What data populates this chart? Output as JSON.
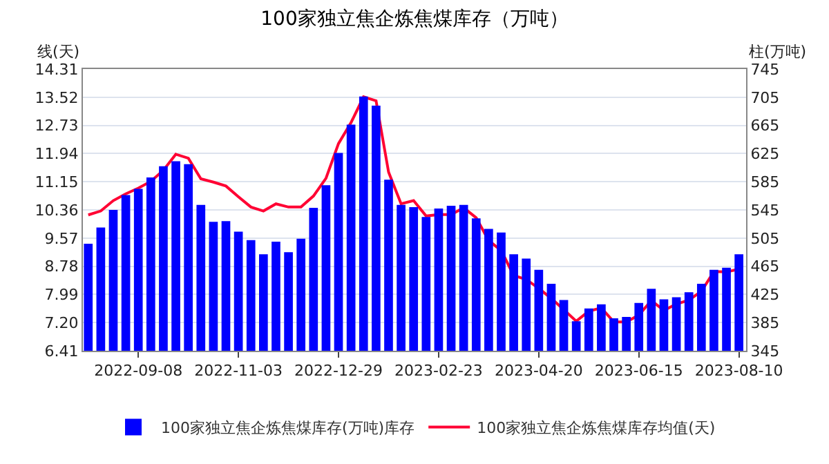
{
  "chart_data": {
    "type": "bar",
    "title": "100家独立焦企炼焦煤库存（万吨）",
    "ylabel": "线(天)",
    "y2label": "柱(万吨)",
    "x": [
      "2022-08-11",
      "2022-08-18",
      "2022-08-25",
      "2022-09-01",
      "2022-09-08",
      "2022-09-15",
      "2022-09-22",
      "2022-09-29",
      "2022-10-06",
      "2022-10-13",
      "2022-10-20",
      "2022-10-27",
      "2022-11-03",
      "2022-11-10",
      "2022-11-17",
      "2022-11-24",
      "2022-12-01",
      "2022-12-08",
      "2022-12-15",
      "2022-12-22",
      "2022-12-29",
      "2023-01-05",
      "2023-01-12",
      "2023-01-19",
      "2023-01-26",
      "2023-02-02",
      "2023-02-09",
      "2023-02-16",
      "2023-02-23",
      "2023-03-02",
      "2023-03-09",
      "2023-03-16",
      "2023-03-23",
      "2023-03-30",
      "2023-04-06",
      "2023-04-13",
      "2023-04-20",
      "2023-04-27",
      "2023-05-04",
      "2023-05-11",
      "2023-05-18",
      "2023-05-25",
      "2023-06-01",
      "2023-06-08",
      "2023-06-15",
      "2023-06-22",
      "2023-06-29",
      "2023-07-06",
      "2023-07-13",
      "2023-07-20",
      "2023-07-27",
      "2023-08-03",
      "2023-08-10"
    ],
    "series": [
      {
        "name": "100家独立焦企炼焦煤库存(万吨)库存",
        "axis": "y2",
        "color": "#0000ff",
        "values": [
          497,
          520,
          545,
          566,
          575,
          591,
          607,
          614,
          610,
          552,
          528,
          529,
          514,
          502,
          482,
          500,
          485,
          504,
          548,
          580,
          626,
          666,
          706,
          693,
          588,
          552,
          549,
          535,
          547,
          551,
          552,
          533,
          518,
          513,
          482,
          476,
          460,
          440,
          417,
          387,
          405,
          411,
          391,
          393,
          413,
          433,
          418,
          421,
          428,
          440,
          460,
          463,
          482
        ]
      },
      {
        "name": "100家独立焦企炼焦煤库存均值(天)",
        "type": "line",
        "axis": "y",
        "color": "#ff0033",
        "values": [
          10.22,
          10.33,
          10.62,
          10.81,
          10.97,
          11.16,
          11.47,
          11.92,
          11.81,
          11.23,
          11.14,
          11.03,
          10.73,
          10.44,
          10.33,
          10.53,
          10.44,
          10.44,
          10.75,
          11.25,
          12.22,
          12.81,
          13.53,
          13.42,
          11.42,
          10.53,
          10.62,
          10.19,
          10.23,
          10.23,
          10.42,
          10.14,
          9.5,
          9.22,
          8.52,
          8.41,
          8.16,
          7.88,
          7.56,
          7.24,
          7.52,
          7.61,
          7.22,
          7.22,
          7.41,
          7.82,
          7.54,
          7.72,
          7.83,
          8.08,
          8.63,
          8.62,
          8.7
        ]
      }
    ],
    "xlim": [
      "2022-08-08",
      "2023-08-14"
    ],
    "xticks": [
      {
        "value": "2022-09-08",
        "label": "2022-09-08"
      },
      {
        "value": "2022-11-03",
        "label": "2022-11-03"
      },
      {
        "value": "2022-12-29",
        "label": "2022-12-29"
      },
      {
        "value": "2023-02-23",
        "label": "2023-02-23"
      },
      {
        "value": "2023-04-20",
        "label": "2023-04-20"
      },
      {
        "value": "2023-06-15",
        "label": "2023-06-15"
      },
      {
        "value": "2023-08-10",
        "label": "2023-08-10"
      }
    ],
    "ylim": [
      6.41,
      14.31
    ],
    "yticks": [
      6.41,
      {
        "value": 7.2,
        "label": "7.20"
      },
      7.99,
      8.78,
      9.57,
      10.36,
      11.15,
      11.94,
      12.73,
      13.52,
      14.31
    ],
    "y2lim": [
      345,
      745
    ],
    "y2ticks": [
      345,
      385,
      425,
      465,
      505,
      545,
      585,
      625,
      665,
      705,
      745
    ],
    "grid": "y",
    "legend": "bottom",
    "marker": "none",
    "line_style": "solid"
  }
}
